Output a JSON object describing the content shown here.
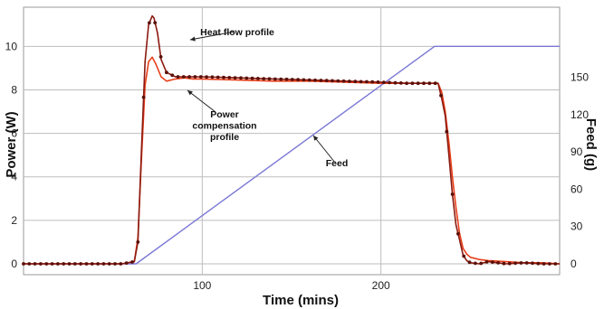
{
  "chart_data": {
    "type": "line",
    "xlabel": "Time (mins)",
    "ylabel_left": "Power (W)",
    "ylabel_right": "Feed (g)",
    "xlim": [
      0,
      300
    ],
    "ylim_left": [
      -0.5,
      11.8
    ],
    "ylim_right": [
      -8.75,
      206.5
    ],
    "x_ticks": [
      100,
      200
    ],
    "y_ticks_left": [
      0,
      2,
      4,
      6,
      8,
      10
    ],
    "y_ticks_right": [
      0,
      30,
      60,
      90,
      120,
      150
    ],
    "grid": true,
    "series": [
      {
        "name": "Heat flow profile",
        "axis": "left",
        "color": "#8b1a10",
        "marker": "dot",
        "x": [
          0,
          20,
          40,
          55,
          62,
          64,
          66,
          68,
          70,
          72,
          73,
          75,
          77,
          80,
          85,
          90,
          100,
          120,
          140,
          160,
          180,
          200,
          215,
          225,
          232,
          234,
          236,
          238,
          240,
          242,
          244,
          246,
          248,
          250,
          255,
          260,
          270,
          280,
          290,
          300
        ],
        "y": [
          0,
          0,
          0,
          0,
          0.1,
          1.0,
          5.2,
          9.3,
          11.0,
          11.4,
          11.3,
          10.6,
          9.4,
          8.8,
          8.6,
          8.6,
          8.6,
          8.55,
          8.5,
          8.45,
          8.4,
          8.35,
          8.3,
          8.3,
          8.3,
          7.6,
          6.8,
          5.0,
          3.2,
          1.8,
          1.1,
          0.4,
          0.15,
          0.05,
          0.0,
          0.1,
          0.0,
          0.05,
          0.0,
          0.0
        ]
      },
      {
        "name": "Power compensation profile",
        "axis": "left",
        "color": "#e8401c",
        "marker": "none",
        "x": [
          0,
          20,
          40,
          55,
          62,
          64,
          66,
          68,
          70,
          72,
          74,
          77,
          80,
          85,
          90,
          95,
          100,
          120,
          140,
          160,
          180,
          200,
          215,
          225,
          232,
          234,
          236,
          238,
          240,
          242,
          244,
          246,
          248,
          250,
          255,
          260,
          270,
          280,
          290,
          300
        ],
        "y": [
          0,
          0,
          0,
          0,
          0.1,
          1.2,
          4.8,
          8.2,
          9.3,
          9.5,
          9.2,
          8.6,
          8.4,
          8.5,
          8.55,
          8.5,
          8.5,
          8.45,
          8.4,
          8.4,
          8.35,
          8.3,
          8.3,
          8.3,
          8.3,
          7.9,
          7.0,
          5.6,
          4.0,
          2.6,
          1.4,
          0.7,
          0.45,
          0.3,
          0.2,
          0.15,
          0.1,
          0.05,
          0.05,
          0.0
        ]
      },
      {
        "name": "Feed",
        "axis": "right",
        "color": "#7b78d6",
        "marker": "none",
        "x": [
          0,
          63,
          63,
          230,
          300
        ],
        "y": [
          0,
          0,
          0,
          175,
          175
        ]
      }
    ],
    "annotations": [
      {
        "id": "heat",
        "lines": [
          "Heat flow profile"
        ]
      },
      {
        "id": "power",
        "lines": [
          "Power",
          "compensation",
          "profile"
        ]
      },
      {
        "id": "feed",
        "lines": [
          "Feed"
        ]
      }
    ]
  }
}
